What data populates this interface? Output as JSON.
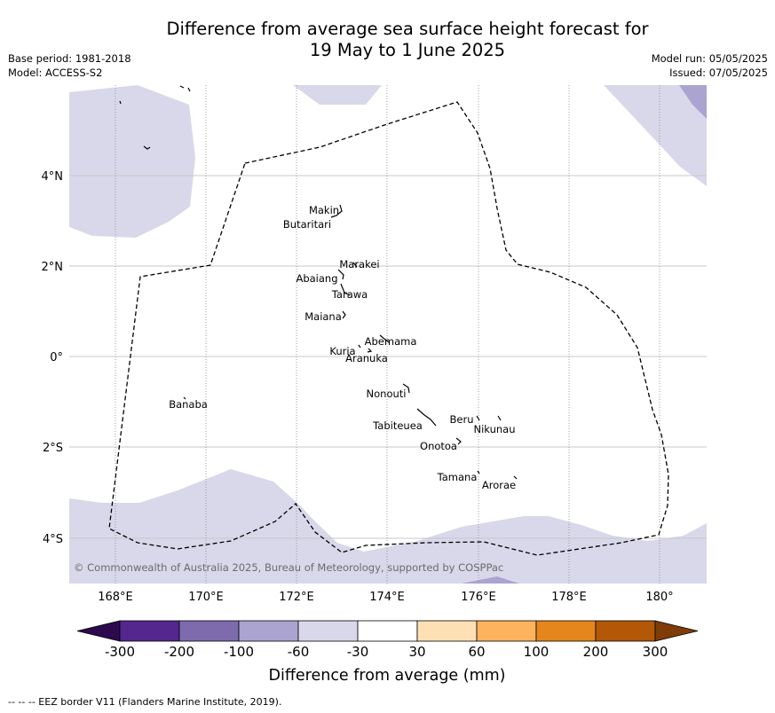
{
  "title_line1": "Difference from average sea surface height forecast for",
  "title_line2": "19 May to 1 June 2025",
  "base_period": "Base period: 1981-2018",
  "model": "Model: ACCESS-S2",
  "model_run": "Model run: 05/05/2025",
  "issued": "Issued: 07/05/2025",
  "copyright": "© Commonwealth of Australia 2025, Bureau of Meteorology, supported by COSPPac",
  "footer_note": "--  --  -- EEZ border V11 (Flanders Marine Institute, 2019).",
  "colorbar": {
    "title": "Difference from average (mm)",
    "tick_labels": [
      "-300",
      "-200",
      "-100",
      "-60",
      "-30",
      "30",
      "60",
      "100",
      "200",
      "300"
    ],
    "colors": [
      "#2d0a4e",
      "#54278f",
      "#7d6bad",
      "#aba4d0",
      "#d8d8ea",
      "#ffffff",
      "#fee0b5",
      "#fdb25e",
      "#e4861c",
      "#b35806",
      "#7f3b08"
    ]
  },
  "axes": {
    "lon_labels": [
      "168°E",
      "170°E",
      "172°E",
      "174°E",
      "176°E",
      "178°E",
      "180°"
    ],
    "lat_labels": [
      "4°N",
      "2°N",
      "0°",
      "2°S",
      "4°S"
    ]
  },
  "islands": [
    {
      "name": "Makin"
    },
    {
      "name": "Butaritari"
    },
    {
      "name": "Marakei"
    },
    {
      "name": "Abaiang"
    },
    {
      "name": "Tarawa"
    },
    {
      "name": "Maiana"
    },
    {
      "name": "Abemama"
    },
    {
      "name": "Kuria"
    },
    {
      "name": "Aranuka"
    },
    {
      "name": "Nonouti"
    },
    {
      "name": "Banaba"
    },
    {
      "name": "Beru"
    },
    {
      "name": "Tabiteuea"
    },
    {
      "name": "Nikunau"
    },
    {
      "name": "Onotoa"
    },
    {
      "name": "Tamana"
    },
    {
      "name": "Arorae"
    }
  ],
  "colors": {
    "light_anomaly": "#d8d8ea",
    "mid_anomaly": "#aba4d0",
    "grid": "#c8c8c8"
  }
}
